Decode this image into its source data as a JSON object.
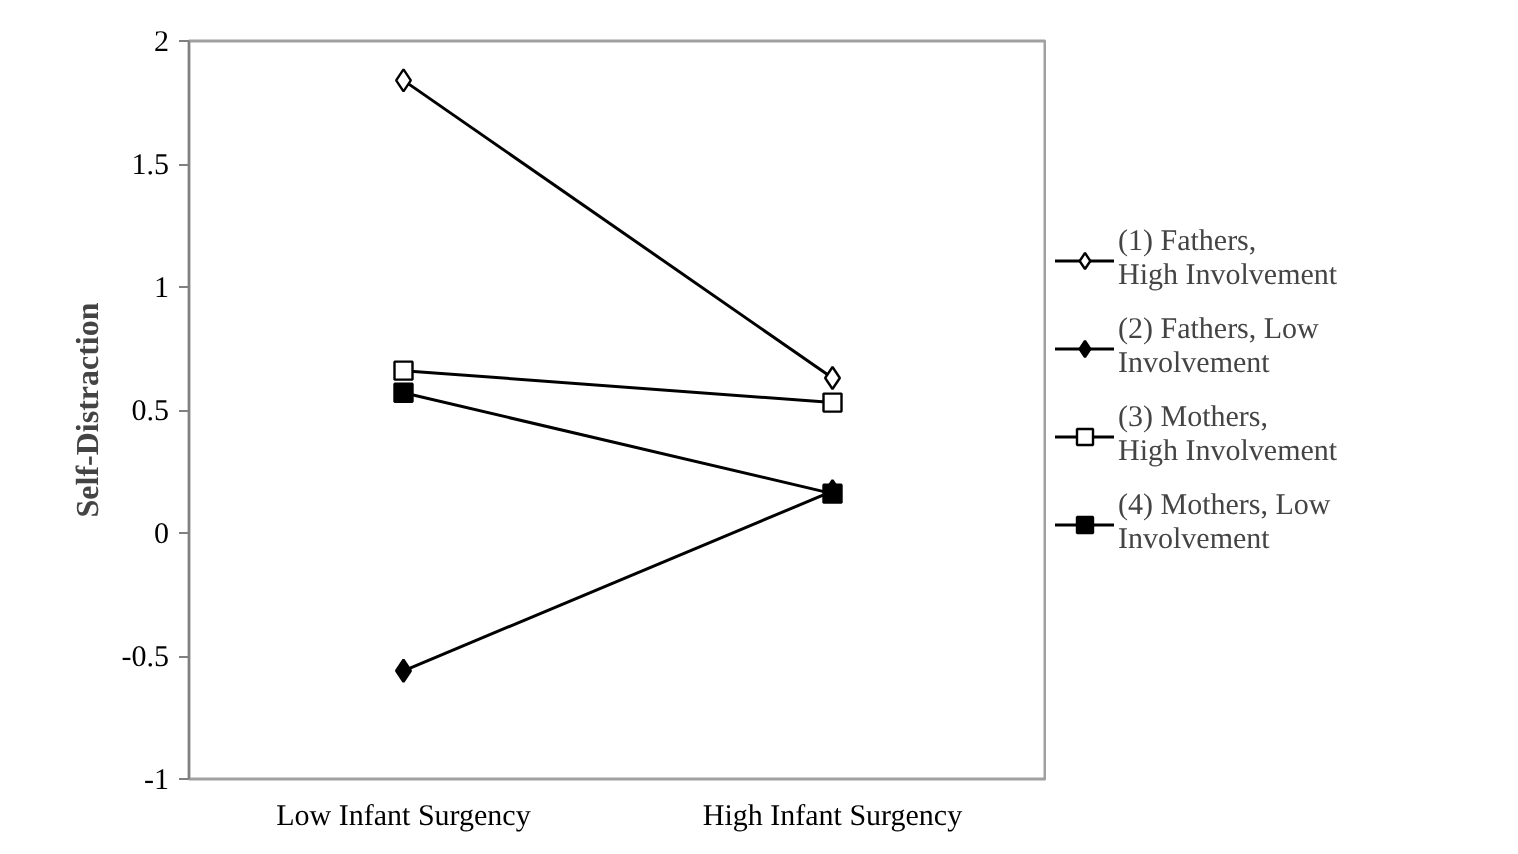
{
  "chart_data": {
    "type": "line",
    "ylabel": "Self-Distraction",
    "categories": [
      "Low Infant Surgency",
      "High Infant Surgency"
    ],
    "ylim": [
      -1,
      2
    ],
    "yticks": [
      -1,
      -0.5,
      0,
      0.5,
      1,
      1.5,
      2
    ],
    "grid": false,
    "legend": "right",
    "series": [
      {
        "name": "(1) Fathers, High Involvement",
        "color": "#000000",
        "colors": [
          "#ffffff",
          "#ffffff"
        ],
        "marker": "diamond",
        "values": [
          1.84,
          0.63
        ]
      },
      {
        "name": "(2) Fathers, Low Involvement",
        "color": "#000000",
        "marker": "diamond",
        "values": [
          -0.56,
          0.17
        ]
      },
      {
        "name": "(3) Mothers, High Involvement",
        "color": "#000000",
        "colors": [
          "#ffffff",
          "#ffffff"
        ],
        "marker": "square",
        "values": [
          0.66,
          0.53
        ]
      },
      {
        "name": "(4) Mothers, Low Involvement",
        "color": "#000000",
        "marker": "square",
        "values": [
          0.57,
          0.16
        ]
      }
    ]
  }
}
